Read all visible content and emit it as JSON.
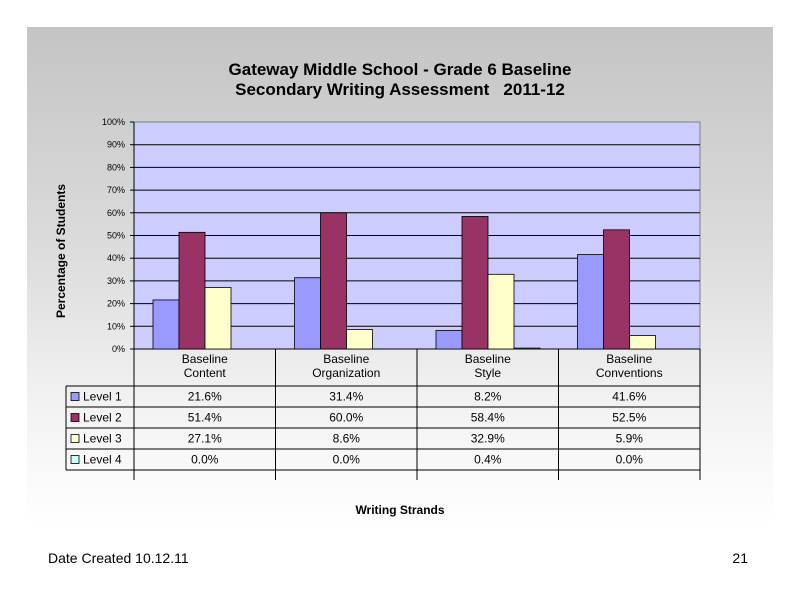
{
  "chart_data": {
    "type": "bar",
    "title": [
      "Gateway Middle School - Grade 6 Baseline",
      "Secondary Writing Assessment   2011-12"
    ],
    "xlabel": "Writing Strands",
    "ylabel": "Percentage of Students",
    "ylim": [
      0,
      100
    ],
    "yticks": [
      "0%",
      "10%",
      "20%",
      "30%",
      "40%",
      "50%",
      "60%",
      "70%",
      "80%",
      "90%",
      "100%"
    ],
    "categories": [
      [
        "Baseline",
        "Content"
      ],
      [
        "Baseline",
        "Organization"
      ],
      [
        "Baseline",
        "Style"
      ],
      [
        "Baseline",
        "Conventions"
      ]
    ],
    "grid": true,
    "legend": "data table below chart",
    "series": [
      {
        "name": "Level 1",
        "color": "#9999ff",
        "values": [
          21.6,
          31.4,
          8.2,
          41.6
        ],
        "labels": [
          "21.6%",
          "31.4%",
          "8.2%",
          "41.6%"
        ]
      },
      {
        "name": "Level 2",
        "color": "#993366",
        "values": [
          51.4,
          60.0,
          58.4,
          52.5
        ],
        "labels": [
          "51.4%",
          "60.0%",
          "58.4%",
          "52.5%"
        ]
      },
      {
        "name": "Level 3",
        "color": "#ffffcc",
        "values": [
          27.1,
          8.6,
          32.9,
          5.9
        ],
        "labels": [
          "27.1%",
          "8.6%",
          "32.9%",
          "5.9%"
        ]
      },
      {
        "name": "Level 4",
        "color": "#ccffff",
        "values": [
          0.0,
          0.0,
          0.4,
          0.0
        ],
        "labels": [
          "0.0%",
          "0.0%",
          "0.4%",
          "0.0%"
        ]
      }
    ],
    "plot_background": "#ccccff"
  },
  "footer": {
    "date_created": "Date Created  10.12.11",
    "page_number": "21"
  }
}
